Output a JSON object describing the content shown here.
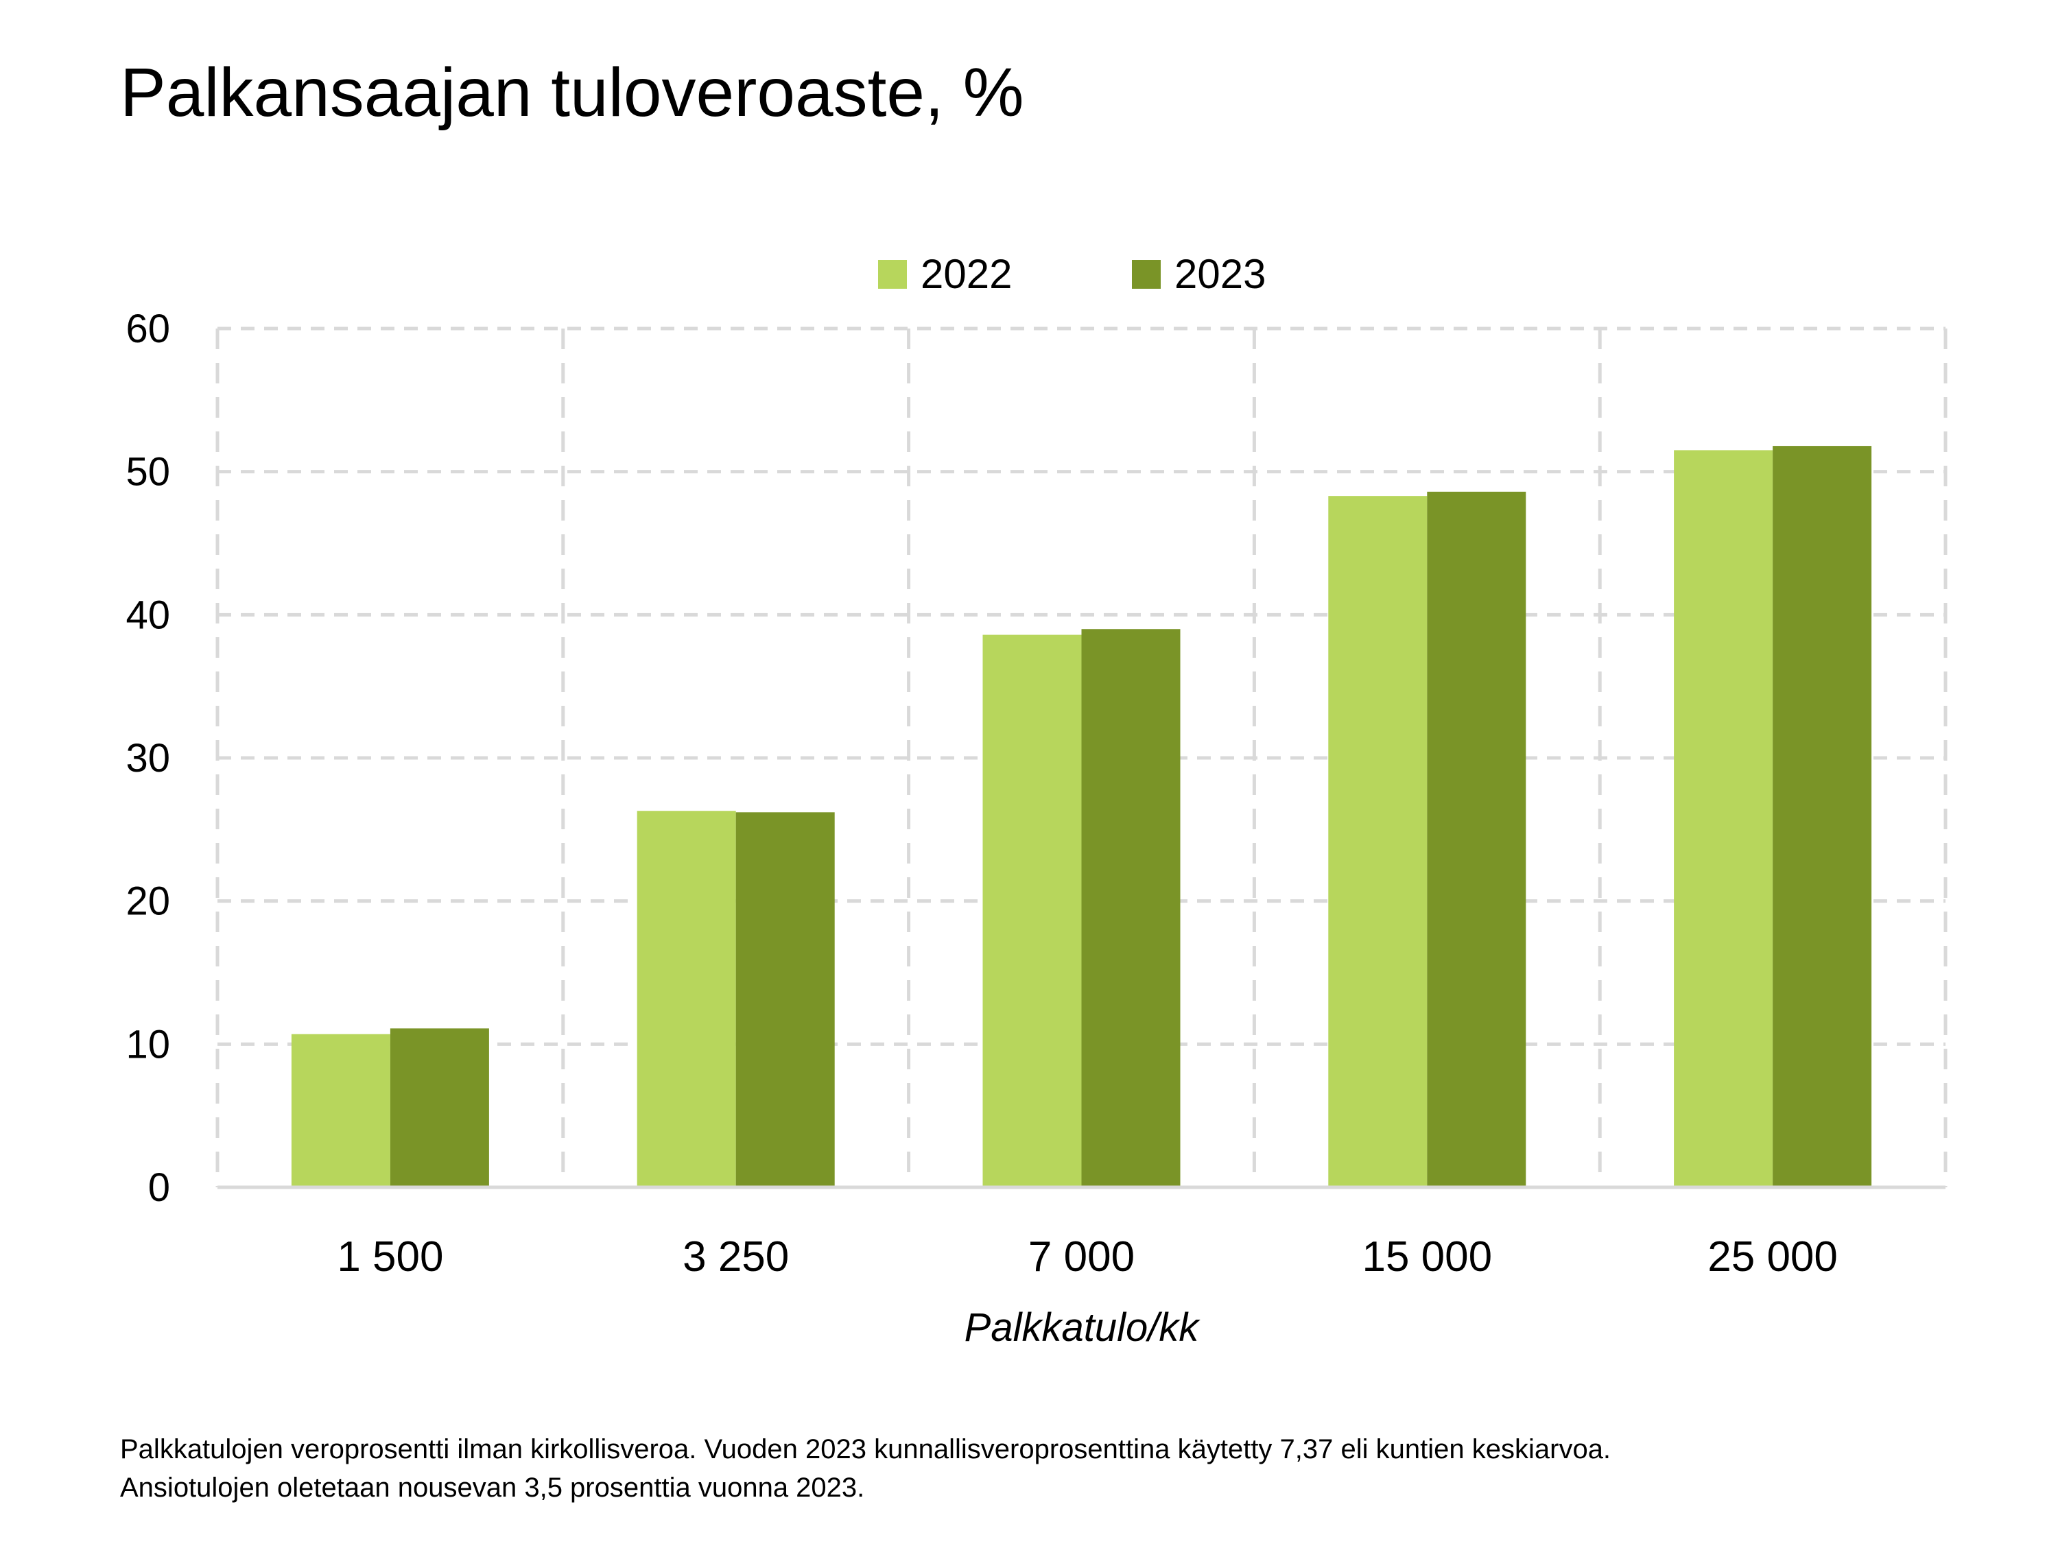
{
  "title": "Palkansaajan tuloveroaste, %",
  "footnote": [
    "Palkkatulojen  veroprosentti ilman kirkollisveroa. Vuoden 2023 kunnallisveroprosenttina käytetty 7,37 eli kuntien keskiarvoa.",
    "Ansiotulojen oletetaan nousevan 3,5 prosenttia vuonna 2023."
  ],
  "chart_data": {
    "type": "bar",
    "title": "Palkansaajan tuloveroaste, %",
    "xlabel": "Palkkatulo/kk",
    "ylabel": "",
    "categories": [
      "1 500",
      "3 250",
      "7 000",
      "15 000",
      "25 000"
    ],
    "series": [
      {
        "name": "2022",
        "color": "#b7d65c",
        "values": [
          10.7,
          26.3,
          38.6,
          48.3,
          51.5
        ]
      },
      {
        "name": "2023",
        "color": "#7a9427",
        "values": [
          11.1,
          26.2,
          39.0,
          48.6,
          51.8
        ]
      }
    ],
    "ylim": [
      0,
      60
    ],
    "yticks": [
      "0",
      "10",
      "20",
      "30",
      "40",
      "50",
      "60"
    ],
    "grid": true,
    "legend": "top-center"
  }
}
